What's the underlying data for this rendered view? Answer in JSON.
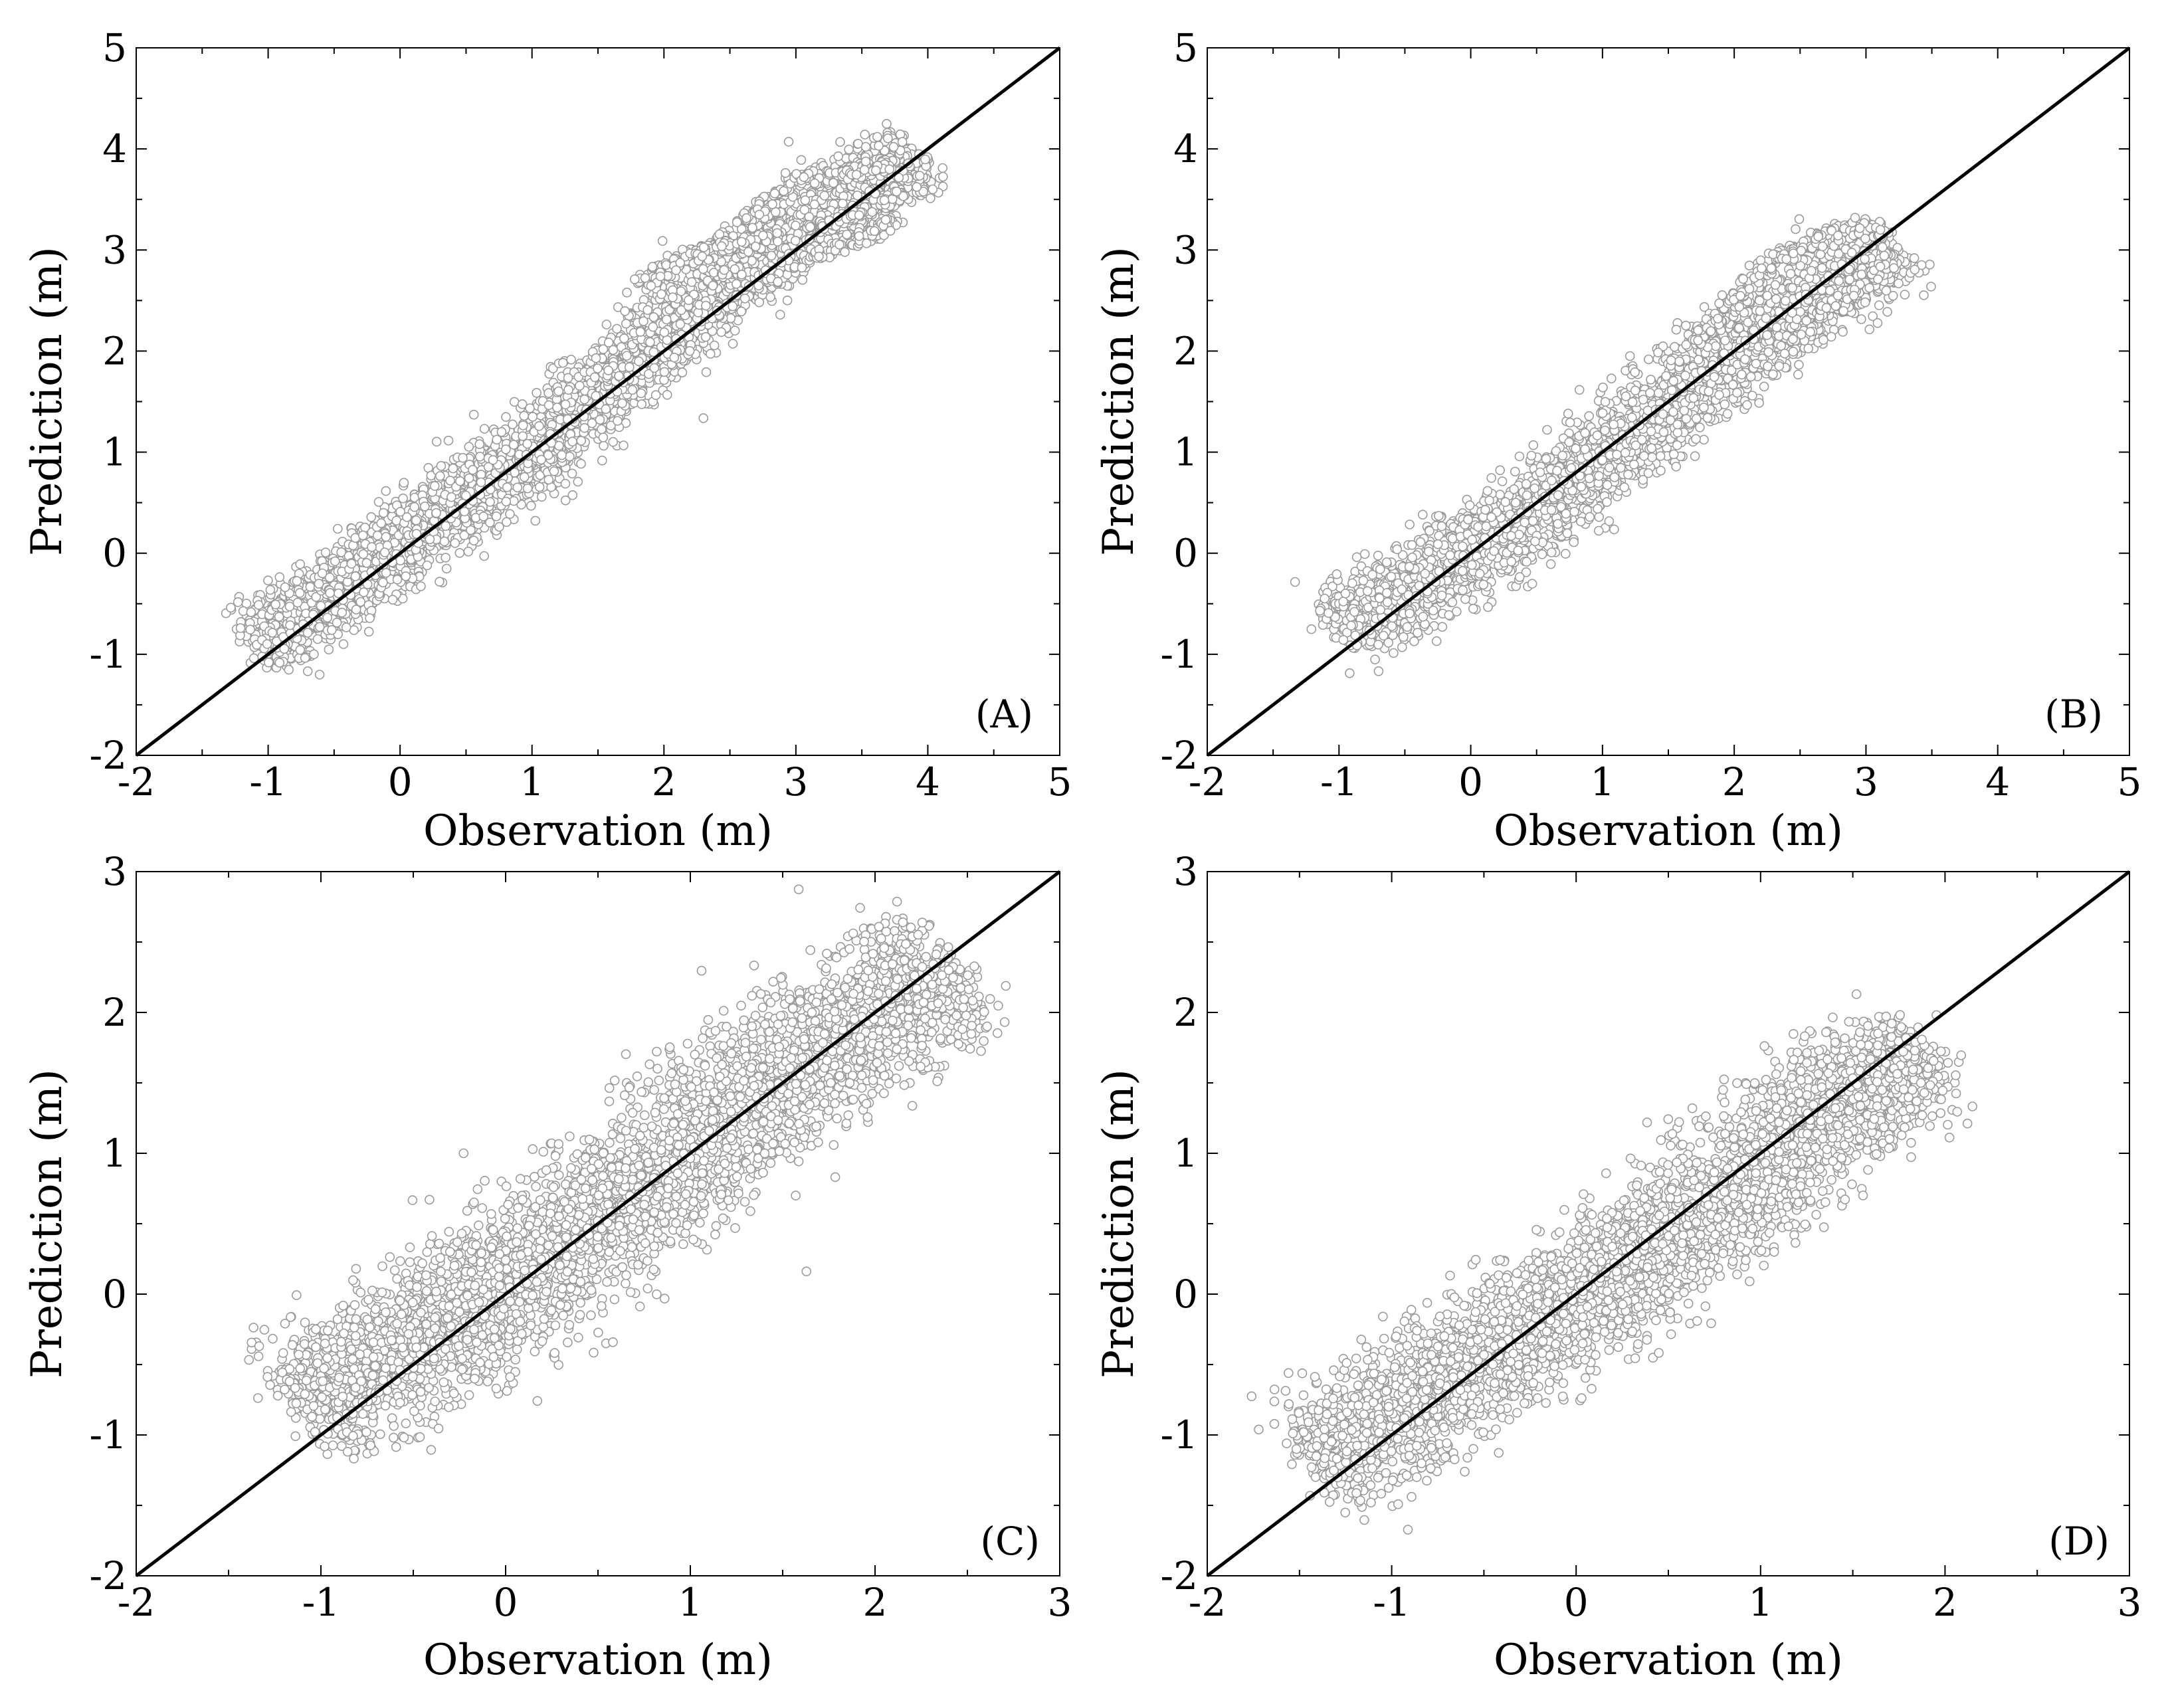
{
  "figure": {
    "background_color": "#ffffff",
    "point_stroke_color": "#9a9a9a",
    "point_fill_color": "#ffffff",
    "line_color": "#000000"
  },
  "chart_data": [
    {
      "type": "scatter",
      "panel_label": "(A)",
      "xlabel": "Observation (m)",
      "ylabel": "Prediction (m)",
      "xlim": [
        -2,
        5
      ],
      "ylim": [
        -2,
        5
      ],
      "xticks": [
        "-2",
        "-1",
        "0",
        "1",
        "2",
        "3",
        "4",
        "5"
      ],
      "yticks": [
        "-2",
        "-1",
        "0",
        "1",
        "2",
        "3",
        "4",
        "5"
      ],
      "reference_line": {
        "x": [
          -2,
          5
        ],
        "y": [
          -2,
          5
        ]
      },
      "point_spread": 0.16,
      "points_per_segment": 320,
      "path": [
        [
          -1.1,
          -0.85
        ],
        [
          -0.8,
          -0.7
        ],
        [
          -0.5,
          -0.4
        ],
        [
          -0.2,
          -0.1
        ],
        [
          0.1,
          0.2
        ],
        [
          0.4,
          0.5
        ],
        [
          0.7,
          0.7
        ],
        [
          1.0,
          0.95
        ],
        [
          1.3,
          1.35
        ],
        [
          1.6,
          1.7
        ],
        [
          1.9,
          2.05
        ],
        [
          2.2,
          2.35
        ],
        [
          2.5,
          2.75
        ],
        [
          2.8,
          3.0
        ],
        [
          3.1,
          3.35
        ],
        [
          3.4,
          3.55
        ],
        [
          3.7,
          3.75
        ],
        [
          3.9,
          3.9
        ]
      ],
      "extra_arcs": [
        [
          [
            2.35,
            3.0
          ],
          [
            2.7,
            3.35
          ],
          [
            3.0,
            3.7
          ],
          [
            3.35,
            3.75
          ],
          [
            3.7,
            3.85
          ]
        ],
        [
          [
            3.1,
            3.2
          ],
          [
            3.4,
            3.35
          ],
          [
            3.65,
            3.45
          ],
          [
            3.8,
            3.55
          ]
        ],
        [
          [
            1.8,
            2.65
          ],
          [
            2.2,
            2.95
          ],
          [
            2.6,
            3.05
          ],
          [
            2.9,
            3.15
          ]
        ],
        [
          [
            2.8,
            2.7
          ],
          [
            3.1,
            2.95
          ],
          [
            3.5,
            3.1
          ],
          [
            3.75,
            3.3
          ]
        ]
      ]
    },
    {
      "type": "scatter",
      "panel_label": "(B)",
      "xlabel": "Observation (m)",
      "ylabel": "Prediction (m)",
      "xlim": [
        -2,
        5
      ],
      "ylim": [
        -2,
        5
      ],
      "xticks": [
        "-2",
        "-1",
        "0",
        "1",
        "2",
        "3",
        "4",
        "5"
      ],
      "yticks": [
        "-2",
        "-1",
        "0",
        "1",
        "2",
        "3",
        "4",
        "5"
      ],
      "reference_line": {
        "x": [
          -2,
          5
        ],
        "y": [
          -2,
          5
        ]
      },
      "point_spread": 0.18,
      "points_per_segment": 300,
      "path": [
        [
          -1.0,
          -0.75
        ],
        [
          -0.7,
          -0.55
        ],
        [
          -0.4,
          -0.35
        ],
        [
          -0.1,
          -0.05
        ],
        [
          0.2,
          0.15
        ],
        [
          0.5,
          0.45
        ],
        [
          0.8,
          0.7
        ],
        [
          1.1,
          1.05
        ],
        [
          1.4,
          1.35
        ],
        [
          1.7,
          1.7
        ],
        [
          2.0,
          2.0
        ],
        [
          2.3,
          2.25
        ],
        [
          2.6,
          2.5
        ],
        [
          2.9,
          2.8
        ],
        [
          3.15,
          3.05
        ]
      ],
      "extra_arcs": [
        [
          [
            1.7,
            2.1
          ],
          [
            2.0,
            2.5
          ],
          [
            2.3,
            2.9
          ],
          [
            2.6,
            3.1
          ],
          [
            2.9,
            3.2
          ],
          [
            3.15,
            3.15
          ]
        ],
        [
          [
            2.6,
            2.35
          ],
          [
            2.85,
            2.5
          ],
          [
            3.05,
            2.75
          ],
          [
            3.2,
            2.95
          ]
        ]
      ]
    },
    {
      "type": "scatter",
      "panel_label": "(C)",
      "xlabel": "Observation (m)",
      "ylabel": "Prediction (m)",
      "xlim": [
        -2,
        3
      ],
      "ylim": [
        -2,
        3
      ],
      "xticks": [
        "-2",
        "-1",
        "0",
        "1",
        "2",
        "3"
      ],
      "yticks": [
        "-2",
        "-1",
        "0",
        "1",
        "2",
        "3"
      ],
      "reference_line": {
        "x": [
          -2,
          3
        ],
        "y": [
          -2,
          3
        ]
      },
      "point_spread": 0.22,
      "points_per_segment": 420,
      "path": [
        [
          -1.1,
          -0.8
        ],
        [
          -0.8,
          -0.6
        ],
        [
          -0.5,
          -0.35
        ],
        [
          -0.2,
          -0.1
        ],
        [
          0.1,
          0.15
        ],
        [
          0.4,
          0.45
        ],
        [
          0.7,
          0.7
        ],
        [
          1.0,
          1.05
        ],
        [
          1.3,
          1.4
        ],
        [
          1.6,
          1.65
        ],
        [
          1.9,
          1.95
        ],
        [
          2.2,
          2.15
        ],
        [
          2.4,
          2.3
        ]
      ],
      "extra_arcs": []
    },
    {
      "type": "scatter",
      "panel_label": "(D)",
      "xlabel": "Observation (m)",
      "ylabel": "Prediction (m)",
      "xlim": [
        -2,
        3
      ],
      "ylim": [
        -2,
        3
      ],
      "xticks": [
        "-2",
        "-1",
        "0",
        "1",
        "2",
        "3"
      ],
      "yticks": [
        "-2",
        "-1",
        "0",
        "1",
        "2",
        "3"
      ],
      "reference_line": {
        "x": [
          -2,
          3
        ],
        "y": [
          -2,
          3
        ]
      },
      "point_spread": 0.2,
      "points_per_segment": 420,
      "path": [
        [
          -1.4,
          -1.2
        ],
        [
          -1.1,
          -1.0
        ],
        [
          -0.8,
          -0.7
        ],
        [
          -0.5,
          -0.45
        ],
        [
          -0.2,
          -0.2
        ],
        [
          0.1,
          0.05
        ],
        [
          0.4,
          0.3
        ],
        [
          0.7,
          0.6
        ],
        [
          1.0,
          0.9
        ],
        [
          1.3,
          1.25
        ],
        [
          1.6,
          1.5
        ],
        [
          1.9,
          1.7
        ]
      ],
      "extra_arcs": []
    }
  ]
}
